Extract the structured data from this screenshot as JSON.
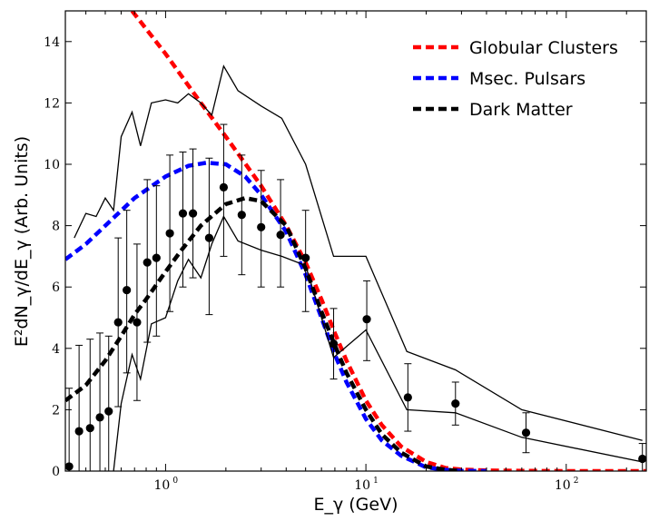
{
  "chart_data": {
    "type": "line",
    "xlabel": "E_γ (GeV)",
    "ylabel": "E²dN_γ/dE_γ (Arb. Units)",
    "xscale": "log",
    "xlim": [
      0.316,
      251
    ],
    "ylim": [
      0,
      15
    ],
    "yticks": [
      "0",
      "2",
      "4",
      "6",
      "8",
      "10",
      "12",
      "14"
    ],
    "xticks": [
      {
        "label": "10",
        "exp": "0"
      },
      {
        "label": "10",
        "exp": "1"
      },
      {
        "label": "10",
        "exp": "2"
      }
    ],
    "legend_position": "top-right",
    "series": [
      {
        "name": "Globular Clusters",
        "style": "dashed",
        "color": "#ff0000",
        "x": [
          0.68,
          1.0,
          1.5,
          2.0,
          3.0,
          4.0,
          5.0,
          6.0,
          7.0,
          8.0,
          10.0,
          12.0,
          15.0,
          20.0,
          25.0,
          30.0,
          40.0,
          60.0,
          100.0,
          150.0,
          251.0
        ],
        "y": [
          15.0,
          13.6,
          12.0,
          10.9,
          9.3,
          8.0,
          6.8,
          5.6,
          4.5,
          3.6,
          2.3,
          1.5,
          0.8,
          0.3,
          0.1,
          0.05,
          0.02,
          0.01,
          0.0,
          0.0,
          0.0
        ]
      },
      {
        "name": "Msec. Pulsars",
        "style": "dashed",
        "color": "#0000ff",
        "x": [
          0.316,
          0.4,
          0.5,
          0.7,
          1.0,
          1.3,
          1.6,
          2.0,
          2.5,
          3.0,
          4.0,
          5.0,
          6.0,
          7.0,
          8.0,
          10.0,
          12.0,
          15.0,
          20.0,
          25.0,
          30.0,
          40.0
        ],
        "y": [
          6.9,
          7.4,
          8.0,
          8.9,
          9.6,
          9.95,
          10.05,
          10.0,
          9.6,
          9.0,
          7.8,
          6.4,
          5.0,
          3.8,
          2.9,
          1.7,
          1.0,
          0.5,
          0.12,
          0.04,
          0.01,
          0.0
        ]
      },
      {
        "name": "Dark Matter",
        "style": "dashed",
        "color": "#000000",
        "x": [
          0.316,
          0.4,
          0.5,
          0.6,
          0.7,
          0.8,
          1.0,
          1.2,
          1.5,
          2.0,
          2.5,
          3.0,
          4.0,
          5.0,
          6.0,
          7.0,
          8.0,
          10.0,
          12.0,
          15.0,
          20.0,
          25.0,
          30.0
        ],
        "y": [
          2.3,
          2.8,
          3.6,
          4.4,
          5.1,
          5.6,
          6.5,
          7.2,
          8.0,
          8.7,
          8.9,
          8.8,
          8.0,
          6.6,
          5.2,
          4.1,
          3.2,
          2.0,
          1.2,
          0.6,
          0.15,
          0.04,
          0.0
        ]
      },
      {
        "name": "",
        "style": "solid",
        "color": "#000000",
        "x": [
          0.35,
          0.4,
          0.45,
          0.5,
          0.55,
          0.6,
          0.68,
          0.75,
          0.85,
          1.0,
          1.15,
          1.3,
          1.5,
          1.7,
          1.95,
          2.3,
          3.0,
          3.8,
          5.0,
          6.9,
          10.0,
          16.0,
          28.0,
          60.0,
          240.0
        ],
        "y": [
          7.6,
          8.4,
          8.3,
          8.9,
          8.5,
          10.9,
          11.7,
          10.6,
          12.0,
          12.1,
          12.0,
          12.3,
          12.0,
          11.6,
          13.2,
          12.4,
          11.9,
          11.5,
          10.0,
          7.0,
          7.0,
          3.9,
          3.3,
          2.0,
          1.0
        ]
      },
      {
        "name": "",
        "style": "solid",
        "color": "#000000",
        "x": [
          0.55,
          0.6,
          0.68,
          0.75,
          0.85,
          1.0,
          1.15,
          1.3,
          1.5,
          1.7,
          1.95,
          2.3,
          3.0,
          3.8,
          5.0,
          6.9,
          10.0,
          16.0,
          28.0,
          60.0,
          240.0
        ],
        "y": [
          0.0,
          2.2,
          3.8,
          3.0,
          4.8,
          5.0,
          6.2,
          6.9,
          6.3,
          7.4,
          8.3,
          7.5,
          7.2,
          7.0,
          6.7,
          3.7,
          4.6,
          2.0,
          1.9,
          1.1,
          0.3
        ]
      }
    ],
    "points": {
      "x": [
        0.33,
        0.37,
        0.42,
        0.47,
        0.52,
        0.58,
        0.64,
        0.72,
        0.81,
        0.9,
        1.05,
        1.22,
        1.37,
        1.65,
        1.95,
        2.4,
        3.0,
        3.75,
        5.0,
        6.9,
        10.1,
        16.2,
        28.0,
        63.0,
        240.0
      ],
      "y": [
        0.15,
        1.3,
        1.4,
        1.75,
        1.95,
        4.85,
        5.9,
        4.85,
        6.8,
        6.95,
        7.75,
        8.4,
        8.4,
        7.6,
        9.25,
        8.35,
        7.95,
        7.7,
        6.95,
        4.15,
        4.95,
        2.4,
        2.2,
        1.25,
        0.4
      ],
      "lo": [
        0.0,
        0.0,
        0.0,
        0.0,
        0.0,
        2.1,
        3.2,
        2.3,
        4.2,
        4.4,
        5.2,
        6.0,
        6.3,
        5.1,
        7.0,
        6.4,
        6.0,
        6.0,
        5.2,
        3.0,
        3.6,
        1.3,
        1.5,
        0.6,
        0.0
      ],
      "hi": [
        2.7,
        4.1,
        4.3,
        4.5,
        4.4,
        7.6,
        8.5,
        7.4,
        9.5,
        9.3,
        10.3,
        10.4,
        10.5,
        10.2,
        11.3,
        10.3,
        9.8,
        9.5,
        8.5,
        5.3,
        6.2,
        3.5,
        2.9,
        1.9,
        0.9
      ]
    }
  }
}
